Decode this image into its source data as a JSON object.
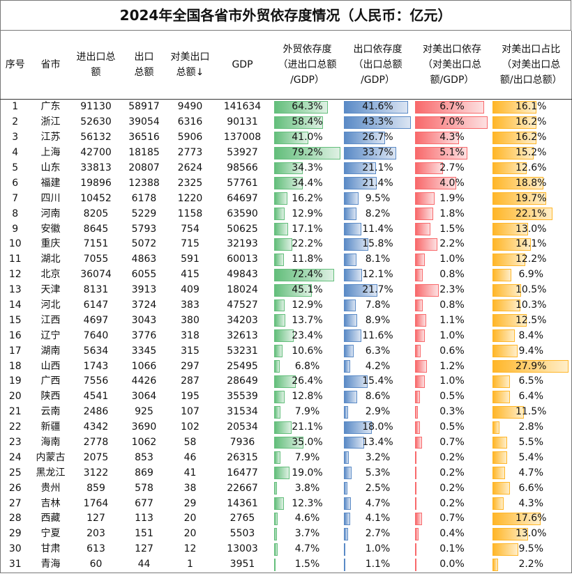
{
  "title": "2024年全国各省市外贸依存度情况（人民币：亿元）",
  "headers": {
    "rank": "序号",
    "province": "省市",
    "trade": [
      "进出口总",
      "额"
    ],
    "export": [
      "出口",
      "总额"
    ],
    "us_export": [
      "对美出口",
      "总额"
    ],
    "sort_arrow": "↓",
    "gdp": "GDP",
    "trade_dep": [
      "外贸依存度",
      "（进出口总额",
      "/GDP）"
    ],
    "export_dep": [
      "出口依存度",
      "（出口总额",
      "/GDP）"
    ],
    "us_dep": [
      "对美出口依存",
      "（对美出口总",
      "额/GDP）"
    ],
    "us_share": [
      "对美出口占比",
      "（对美出口总",
      "额/出口总额）"
    ]
  },
  "rows": [
    {
      "rank": "1",
      "province": "广东",
      "trade": "91130",
      "export": "58917",
      "us_export": "9490",
      "gdp": "141634",
      "trade_dep": "64.3%",
      "export_dep": "41.6%",
      "us_dep": "6.7%",
      "us_share": "16.1%"
    },
    {
      "rank": "2",
      "province": "浙江",
      "trade": "52630",
      "export": "39054",
      "us_export": "6316",
      "gdp": "90131",
      "trade_dep": "58.4%",
      "export_dep": "43.3%",
      "us_dep": "7.0%",
      "us_share": "16.2%"
    },
    {
      "rank": "3",
      "province": "江苏",
      "trade": "56132",
      "export": "36516",
      "us_export": "5906",
      "gdp": "137008",
      "trade_dep": "41.0%",
      "export_dep": "26.7%",
      "us_dep": "4.3%",
      "us_share": "16.2%"
    },
    {
      "rank": "4",
      "province": "上海",
      "trade": "42700",
      "export": "18185",
      "us_export": "2773",
      "gdp": "53927",
      "trade_dep": "79.2%",
      "export_dep": "33.7%",
      "us_dep": "5.1%",
      "us_share": "15.2%"
    },
    {
      "rank": "5",
      "province": "山东",
      "trade": "33813",
      "export": "20807",
      "us_export": "2624",
      "gdp": "98566",
      "trade_dep": "34.3%",
      "export_dep": "21.1%",
      "us_dep": "2.7%",
      "us_share": "12.6%"
    },
    {
      "rank": "6",
      "province": "福建",
      "trade": "19896",
      "export": "12388",
      "us_export": "2325",
      "gdp": "57761",
      "trade_dep": "34.4%",
      "export_dep": "21.4%",
      "us_dep": "4.0%",
      "us_share": "18.8%"
    },
    {
      "rank": "7",
      "province": "四川",
      "trade": "10452",
      "export": "6178",
      "us_export": "1220",
      "gdp": "64697",
      "trade_dep": "16.2%",
      "export_dep": "9.5%",
      "us_dep": "1.9%",
      "us_share": "19.7%"
    },
    {
      "rank": "8",
      "province": "河南",
      "trade": "8205",
      "export": "5229",
      "us_export": "1158",
      "gdp": "63590",
      "trade_dep": "12.9%",
      "export_dep": "8.2%",
      "us_dep": "1.8%",
      "us_share": "22.1%"
    },
    {
      "rank": "9",
      "province": "安徽",
      "trade": "8645",
      "export": "5793",
      "us_export": "754",
      "gdp": "50625",
      "trade_dep": "17.1%",
      "export_dep": "11.4%",
      "us_dep": "1.5%",
      "us_share": "13.0%"
    },
    {
      "rank": "10",
      "province": "重庆",
      "trade": "7151",
      "export": "5072",
      "us_export": "715",
      "gdp": "32193",
      "trade_dep": "22.2%",
      "export_dep": "15.8%",
      "us_dep": "2.2%",
      "us_share": "14.1%"
    },
    {
      "rank": "11",
      "province": "湖北",
      "trade": "7055",
      "export": "4863",
      "us_export": "591",
      "gdp": "60013",
      "trade_dep": "11.8%",
      "export_dep": "8.1%",
      "us_dep": "1.0%",
      "us_share": "12.2%"
    },
    {
      "rank": "12",
      "province": "北京",
      "trade": "36074",
      "export": "6055",
      "us_export": "415",
      "gdp": "49843",
      "trade_dep": "72.4%",
      "export_dep": "12.1%",
      "us_dep": "0.8%",
      "us_share": "6.9%"
    },
    {
      "rank": "13",
      "province": "天津",
      "trade": "8131",
      "export": "3913",
      "us_export": "409",
      "gdp": "18024",
      "trade_dep": "45.1%",
      "export_dep": "21.7%",
      "us_dep": "2.3%",
      "us_share": "10.5%"
    },
    {
      "rank": "14",
      "province": "河北",
      "trade": "6147",
      "export": "3724",
      "us_export": "383",
      "gdp": "47527",
      "trade_dep": "12.9%",
      "export_dep": "7.8%",
      "us_dep": "0.8%",
      "us_share": "10.3%"
    },
    {
      "rank": "15",
      "province": "江西",
      "trade": "4697",
      "export": "3043",
      "us_export": "380",
      "gdp": "34203",
      "trade_dep": "13.7%",
      "export_dep": "8.9%",
      "us_dep": "1.1%",
      "us_share": "12.5%"
    },
    {
      "rank": "16",
      "province": "辽宁",
      "trade": "7640",
      "export": "3776",
      "us_export": "318",
      "gdp": "32613",
      "trade_dep": "23.4%",
      "export_dep": "11.6%",
      "us_dep": "1.0%",
      "us_share": "8.4%"
    },
    {
      "rank": "17",
      "province": "湖南",
      "trade": "5634",
      "export": "3345",
      "us_export": "315",
      "gdp": "53231",
      "trade_dep": "10.6%",
      "export_dep": "6.3%",
      "us_dep": "0.6%",
      "us_share": "9.4%"
    },
    {
      "rank": "18",
      "province": "山西",
      "trade": "1743",
      "export": "1066",
      "us_export": "297",
      "gdp": "25495",
      "trade_dep": "6.8%",
      "export_dep": "4.2%",
      "us_dep": "1.2%",
      "us_share": "27.9%"
    },
    {
      "rank": "19",
      "province": "广西",
      "trade": "7556",
      "export": "4426",
      "us_export": "287",
      "gdp": "28649",
      "trade_dep": "26.4%",
      "export_dep": "15.4%",
      "us_dep": "1.0%",
      "us_share": "6.5%"
    },
    {
      "rank": "20",
      "province": "陕西",
      "trade": "4541",
      "export": "3064",
      "us_export": "195",
      "gdp": "35539",
      "trade_dep": "12.8%",
      "export_dep": "8.6%",
      "us_dep": "0.5%",
      "us_share": "6.4%"
    },
    {
      "rank": "21",
      "province": "云南",
      "trade": "2486",
      "export": "925",
      "us_export": "107",
      "gdp": "31534",
      "trade_dep": "7.9%",
      "export_dep": "2.9%",
      "us_dep": "0.3%",
      "us_share": "11.5%"
    },
    {
      "rank": "22",
      "province": "新疆",
      "trade": "4342",
      "export": "3690",
      "us_export": "102",
      "gdp": "20534",
      "trade_dep": "21.1%",
      "export_dep": "18.0%",
      "us_dep": "0.5%",
      "us_share": "2.8%"
    },
    {
      "rank": "23",
      "province": "海南",
      "trade": "2778",
      "export": "1062",
      "us_export": "58",
      "gdp": "7936",
      "trade_dep": "35.0%",
      "export_dep": "13.4%",
      "us_dep": "0.7%",
      "us_share": "5.5%"
    },
    {
      "rank": "24",
      "province": "内蒙古",
      "trade": "2075",
      "export": "853",
      "us_export": "46",
      "gdp": "26315",
      "trade_dep": "7.9%",
      "export_dep": "3.2%",
      "us_dep": "0.2%",
      "us_share": "5.4%"
    },
    {
      "rank": "25",
      "province": "黑龙江",
      "trade": "3122",
      "export": "869",
      "us_export": "41",
      "gdp": "16477",
      "trade_dep": "19.0%",
      "export_dep": "5.3%",
      "us_dep": "0.2%",
      "us_share": "4.7%"
    },
    {
      "rank": "26",
      "province": "贵州",
      "trade": "859",
      "export": "578",
      "us_export": "38",
      "gdp": "22667",
      "trade_dep": "3.8%",
      "export_dep": "2.5%",
      "us_dep": "0.2%",
      "us_share": "6.6%"
    },
    {
      "rank": "27",
      "province": "吉林",
      "trade": "1764",
      "export": "677",
      "us_export": "29",
      "gdp": "14361",
      "trade_dep": "12.3%",
      "export_dep": "4.7%",
      "us_dep": "0.2%",
      "us_share": "4.3%"
    },
    {
      "rank": "28",
      "province": "西藏",
      "trade": "127",
      "export": "113",
      "us_export": "20",
      "gdp": "2765",
      "trade_dep": "4.6%",
      "export_dep": "4.1%",
      "us_dep": "0.7%",
      "us_share": "17.6%"
    },
    {
      "rank": "29",
      "province": "宁夏",
      "trade": "203",
      "export": "151",
      "us_export": "20",
      "gdp": "5503",
      "trade_dep": "3.7%",
      "export_dep": "2.7%",
      "us_dep": "0.4%",
      "us_share": "13.0%"
    },
    {
      "rank": "30",
      "province": "甘肃",
      "trade": "613",
      "export": "127",
      "us_export": "12",
      "gdp": "13003",
      "trade_dep": "4.7%",
      "export_dep": "1.0%",
      "us_dep": "0.1%",
      "us_share": "9.5%"
    },
    {
      "rank": "31",
      "province": "青海",
      "trade": "60",
      "export": "44",
      "us_export": "1",
      "gdp": "3951",
      "trade_dep": "1.5%",
      "export_dep": "1.1%",
      "us_dep": "0.0%",
      "us_share": "2.2%"
    }
  ],
  "colors": {
    "trade_dep_bar": "#63be7b",
    "export_dep_bar": "#5a8ac6",
    "us_dep_bar": "#f8696b",
    "us_share_bar": "#ffb628"
  }
}
